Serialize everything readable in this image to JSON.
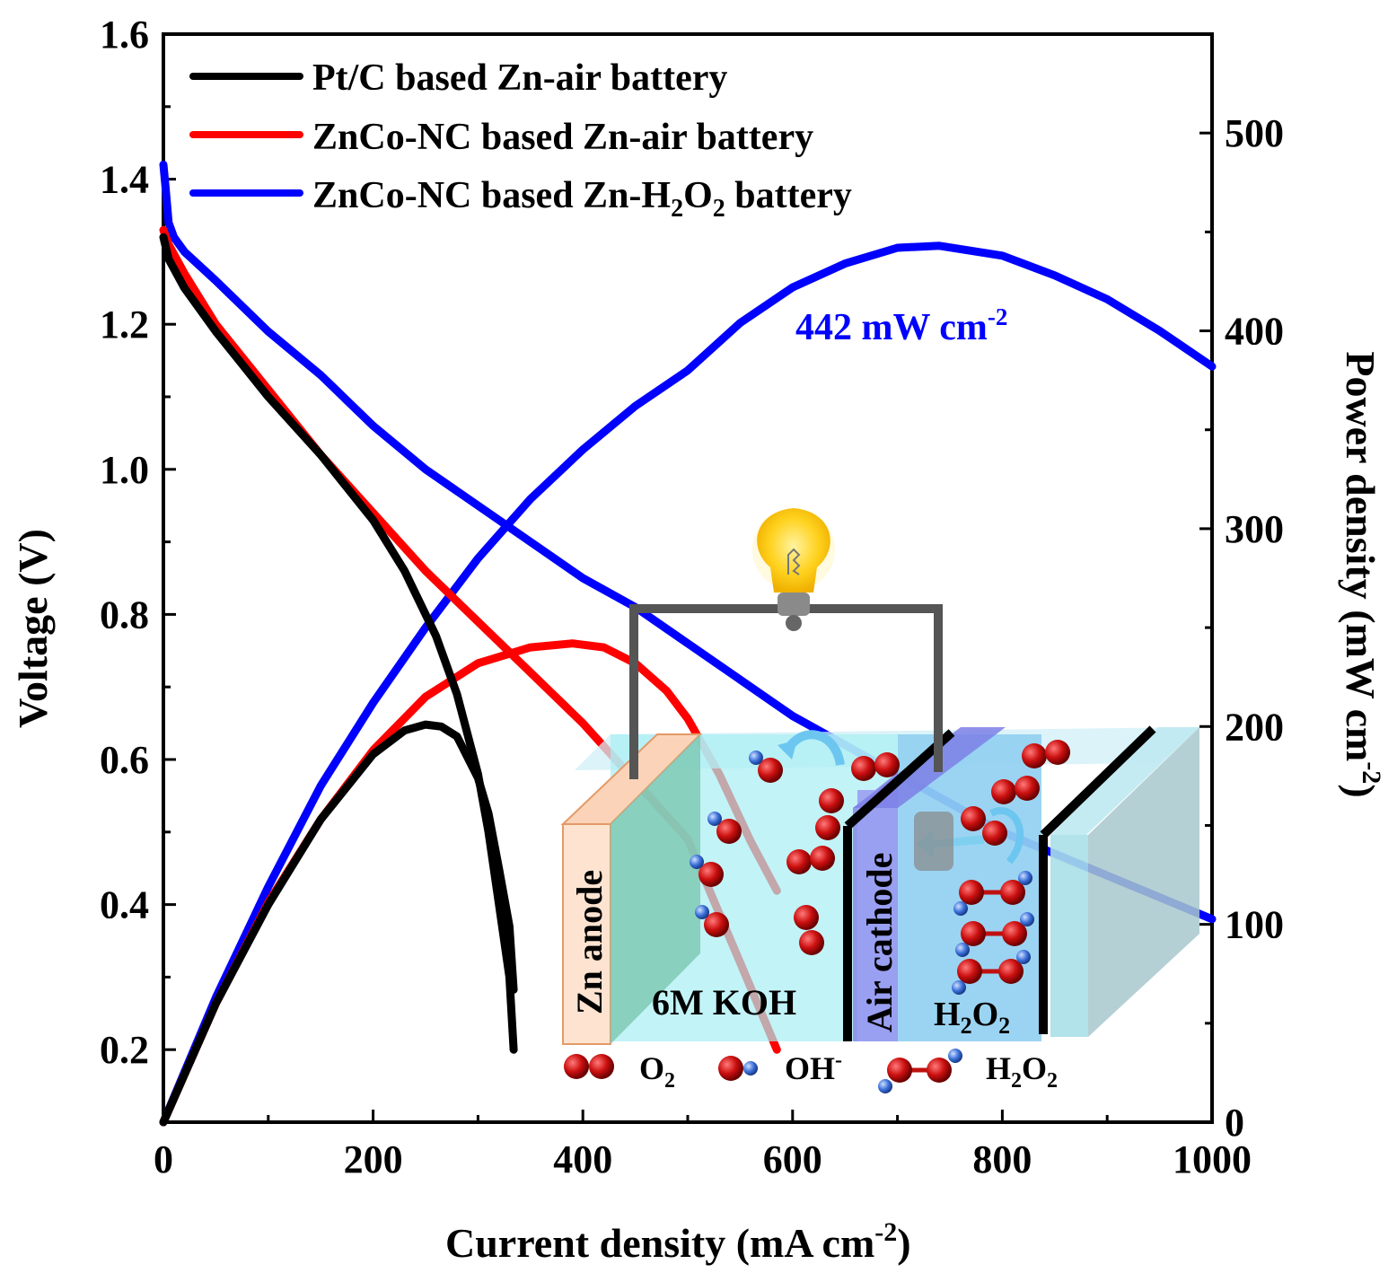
{
  "chart_data": {
    "type": "line",
    "xlabel": "Current density (mA cm",
    "xlabel_sup": "-2",
    "xlabel_tail": ")",
    "ylabel": "Voltage (V)",
    "y2label": "Power density (mW cm",
    "y2label_sup": "-2",
    "y2label_tail": ")",
    "xlim": [
      0,
      1000
    ],
    "ylim": [
      0.1,
      1.6
    ],
    "y2lim": [
      0,
      550
    ],
    "x_ticks": [
      "0",
      "200",
      "400",
      "600",
      "800",
      "1000"
    ],
    "y_ticks": [
      "0.2",
      "0.4",
      "0.6",
      "0.8",
      "1.0",
      "1.2",
      "1.4",
      "1.6"
    ],
    "y2_ticks": [
      "0",
      "100",
      "200",
      "300",
      "400",
      "500"
    ],
    "grid": false,
    "legend_position": "top-left",
    "legend": [
      {
        "label": "Pt/C based Zn-air battery",
        "color": "#000000"
      },
      {
        "label": "ZnCo-NC based Zn-air battery",
        "color": "#ff0000"
      },
      {
        "label_pre": "ZnCo-NC based Zn-H",
        "sub1": "2",
        "label_mid": "O",
        "sub2": "2",
        "label_post": " battery",
        "color": "#0000ff"
      }
    ],
    "annotation": {
      "text": "442 mW cm",
      "sup": "-2",
      "color": "#0000ff"
    },
    "series": [
      {
        "name": "Pt/C based Zn-air battery",
        "color": "#000000",
        "axis": "left",
        "x": [
          0,
          5,
          20,
          50,
          100,
          150,
          200,
          230,
          260,
          280,
          300,
          310,
          320,
          330,
          334
        ],
        "y": [
          1.32,
          1.29,
          1.25,
          1.19,
          1.1,
          1.02,
          0.93,
          0.86,
          0.77,
          0.69,
          0.58,
          0.5,
          0.4,
          0.3,
          0.2
        ]
      },
      {
        "name": "Pt/C based Zn-air battery",
        "color": "#000000",
        "axis": "right",
        "x": [
          0,
          50,
          100,
          150,
          200,
          230,
          250,
          265,
          280,
          300,
          310,
          320,
          330,
          334
        ],
        "y": [
          0,
          60,
          110,
          153,
          186,
          198,
          201,
          200,
          195,
          174,
          156,
          128,
          99,
          67
        ]
      },
      {
        "name": "ZnCo-NC based Zn-air battery",
        "color": "#ff0000",
        "axis": "left",
        "x": [
          0,
          5,
          20,
          50,
          100,
          150,
          200,
          250,
          300,
          350,
          400,
          450,
          500,
          550,
          585
        ],
        "y": [
          1.33,
          1.31,
          1.27,
          1.2,
          1.11,
          1.02,
          0.94,
          0.86,
          0.79,
          0.72,
          0.65,
          0.57,
          0.49,
          0.32,
          0.2
        ]
      },
      {
        "name": "ZnCo-NC based Zn-air battery",
        "color": "#ff0000",
        "axis": "right",
        "x": [
          0,
          50,
          100,
          150,
          200,
          250,
          300,
          350,
          390,
          420,
          450,
          480,
          500,
          530,
          560,
          585
        ],
        "y": [
          0,
          60,
          111,
          153,
          188,
          215,
          232,
          240,
          242,
          240,
          232,
          218,
          204,
          176,
          142,
          117
        ]
      },
      {
        "name": "ZnCo-NC based Zn-H2O2 battery",
        "color": "#0000ff",
        "axis": "left",
        "x": [
          0,
          2,
          5,
          10,
          20,
          50,
          100,
          150,
          200,
          250,
          300,
          350,
          400,
          450,
          500,
          550,
          600,
          650,
          700,
          750,
          800,
          850,
          900,
          950,
          1000
        ],
        "y": [
          1.42,
          1.39,
          1.34,
          1.32,
          1.3,
          1.26,
          1.19,
          1.13,
          1.06,
          1.0,
          0.95,
          0.9,
          0.85,
          0.81,
          0.76,
          0.71,
          0.66,
          0.62,
          0.58,
          0.54,
          0.5,
          0.47,
          0.44,
          0.41,
          0.38
        ]
      },
      {
        "name": "ZnCo-NC based Zn-H2O2 battery",
        "color": "#0000ff",
        "axis": "right",
        "x": [
          0,
          50,
          100,
          150,
          200,
          250,
          300,
          350,
          400,
          450,
          500,
          550,
          600,
          650,
          700,
          740,
          800,
          850,
          900,
          950,
          1000
        ],
        "y": [
          0,
          63,
          119,
          170,
          212,
          250,
          285,
          315,
          340,
          362,
          380,
          404,
          422,
          434,
          442,
          443,
          438,
          428,
          416,
          400,
          382
        ]
      }
    ]
  },
  "inset": {
    "anode_label": "Zn anode",
    "electrolyte_label": "6M KOH",
    "cathode_label": "Air cathode",
    "h2o2_label_pre": "H",
    "h2o2_label_mid": "O",
    "h2o2_sub": "2",
    "legend_o2": "O",
    "legend_o2_sub": "2",
    "legend_oh": "OH",
    "legend_oh_sup": "-",
    "legend_h2o2_pre": "H",
    "legend_h2o2_mid": "O",
    "legend_h2o2_sub": "2"
  }
}
